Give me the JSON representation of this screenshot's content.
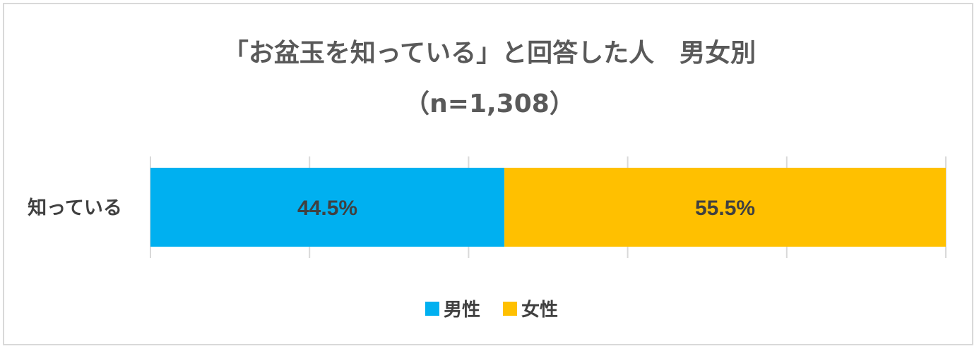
{
  "chart_data": {
    "type": "bar",
    "orientation": "horizontal",
    "stacked": true,
    "percent": true,
    "title": "「お盆玉を知っている」と回答した人　男女別",
    "subtitle": "（n=1,308）",
    "categories": [
      "知っている"
    ],
    "series": [
      {
        "name": "男性",
        "values": [
          44.5
        ],
        "labels": [
          "44.5%"
        ],
        "color": "#00B0F0"
      },
      {
        "name": "女性",
        "values": [
          55.5
        ],
        "labels": [
          "55.5%"
        ],
        "color": "#FFC000"
      }
    ],
    "xlim": [
      0,
      100
    ],
    "grid": true,
    "legend_position": "bottom"
  }
}
